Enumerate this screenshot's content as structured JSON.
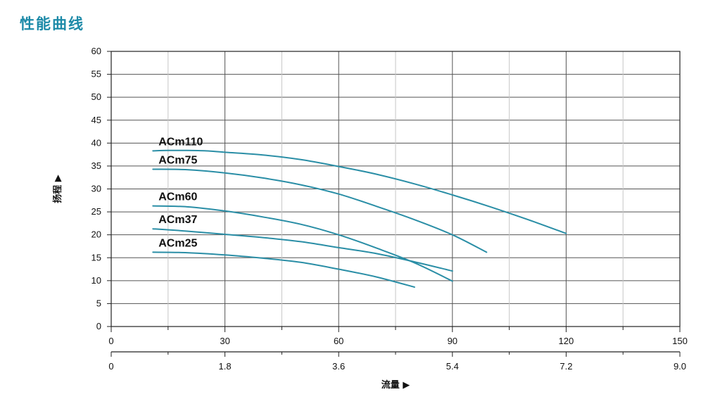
{
  "page": {
    "title": "性能曲线"
  },
  "colors": {
    "title": "#1d8aa8",
    "curve": "#2a8ea6",
    "grid_major": "#555555",
    "grid_minor": "#c6c6c6"
  },
  "chart_data": {
    "type": "line",
    "ylabel": "扬程 ▶",
    "xlabel": "流量 ▶",
    "ylim": [
      0,
      60
    ],
    "yticks": [
      "0",
      "5",
      "10",
      "15",
      "20",
      "25",
      "30",
      "35",
      "40",
      "45",
      "50",
      "55",
      "60"
    ],
    "xlim": [
      0,
      150
    ],
    "xticks": [
      "0",
      "30",
      "60",
      "90",
      "120",
      "150"
    ],
    "xticks_secondary": [
      "0",
      "1.8",
      "3.6",
      "5.4",
      "7.2",
      "9.0"
    ],
    "grid": true,
    "series": [
      {
        "name": "ACm110",
        "x": [
          11,
          15,
          20,
          25,
          30,
          40,
          50,
          60,
          70,
          80,
          90,
          100,
          110,
          120
        ],
        "y": [
          38.3,
          38.4,
          38.4,
          38.3,
          38.0,
          37.4,
          36.4,
          34.9,
          33.2,
          31.1,
          28.7,
          26.1,
          23.3,
          20.3
        ]
      },
      {
        "name": "ACm75",
        "x": [
          11,
          20,
          30,
          40,
          50,
          60,
          70,
          80,
          90,
          99
        ],
        "y": [
          34.3,
          34.2,
          33.5,
          32.4,
          30.9,
          28.9,
          26.2,
          23.3,
          20.0,
          16.2
        ]
      },
      {
        "name": "ACm60",
        "x": [
          11,
          20,
          30,
          40,
          50,
          60,
          70,
          80,
          90
        ],
        "y": [
          26.3,
          26.1,
          25.2,
          23.9,
          22.3,
          20.0,
          17.1,
          13.9,
          9.9
        ]
      },
      {
        "name": "ACm37",
        "x": [
          11,
          20,
          30,
          40,
          50,
          60,
          70,
          80,
          90
        ],
        "y": [
          21.3,
          20.8,
          20.1,
          19.4,
          18.5,
          17.2,
          15.9,
          14.1,
          12.1
        ]
      },
      {
        "name": "ACm25",
        "x": [
          11,
          20,
          30,
          40,
          50,
          60,
          70,
          80
        ],
        "y": [
          16.2,
          16.1,
          15.6,
          14.9,
          14.0,
          12.5,
          10.8,
          8.6
        ]
      }
    ]
  }
}
